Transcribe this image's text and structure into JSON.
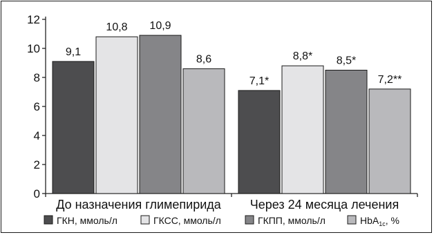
{
  "chart_data": {
    "type": "bar",
    "categories": [
      "До назначения глимепирида",
      "Через 24 месяца лечения"
    ],
    "series": [
      {
        "name": "ГКН, ммоль/л",
        "values": [
          9.1,
          7.1
        ],
        "labels": [
          "9,1",
          "7,1*"
        ],
        "color": "#4d4d4f"
      },
      {
        "name": "ГКСС, ммоль/л",
        "values": [
          10.8,
          8.8
        ],
        "labels": [
          "10,8",
          "8,8*"
        ],
        "color": "#e4e4e6"
      },
      {
        "name": "ГКПП, ммоль/л",
        "values": [
          10.9,
          8.5
        ],
        "labels": [
          "10,9",
          "8,5*"
        ],
        "color": "#858588"
      },
      {
        "name": "HbA1c, %",
        "values": [
          8.6,
          7.2
        ],
        "labels": [
          "8,6",
          "7,2**"
        ],
        "color": "#b9b9bc",
        "legend_main": "HbA",
        "legend_sub": "1c",
        "legend_tail": ", %"
      }
    ],
    "yticks": [
      "0",
      "2",
      "4",
      "6",
      "8",
      "10",
      "12"
    ],
    "ylim": [
      0,
      12
    ],
    "grid": false,
    "legend_position": "bottom"
  }
}
